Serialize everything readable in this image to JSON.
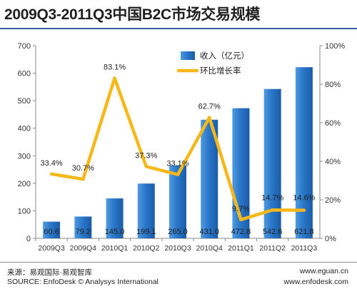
{
  "title": "2009Q3-2011Q3中国B2C市场交易规模",
  "footer": {
    "source_cn": "来源：易观国际·易观智库",
    "source_en": "SOURCE: EnfoDesk © Analysys International",
    "url1": "www.eguan.cn",
    "url2": "www.enfodesk.com"
  },
  "chart_data": {
    "type": "bar",
    "categories": [
      "2009Q3",
      "2009Q4",
      "2010Q1",
      "2010Q2",
      "2010Q3",
      "2010Q4",
      "2011Q1",
      "2011Q2",
      "2011Q3"
    ],
    "series": [
      {
        "name": "收入（亿元）",
        "type": "bar",
        "axis": "left",
        "values": [
          60.6,
          79.2,
          145.0,
          199.1,
          265.0,
          431.0,
          472.8,
          542.6,
          621.8
        ],
        "labels": [
          "60.6",
          "79.2",
          "145.0",
          "199.1",
          "265.0",
          "431.0",
          "472.8",
          "542.6",
          "621.8"
        ],
        "color": "#2a77c9"
      },
      {
        "name": "环比增长率",
        "type": "line",
        "axis": "right",
        "values": [
          33.4,
          30.7,
          83.1,
          37.3,
          33.1,
          62.7,
          9.7,
          14.7,
          14.6
        ],
        "labels": [
          "33.4%",
          "30.7%",
          "83.1%",
          "37.3%",
          "33.1%",
          "62.7%",
          "9.7%",
          "14.7%",
          "14.6%"
        ],
        "color": "#f7b718"
      }
    ],
    "y_left": {
      "min": 0,
      "max": 700,
      "ticks": [
        "0",
        "100",
        "200",
        "300",
        "400",
        "500",
        "600",
        "700"
      ]
    },
    "y_right": {
      "min": 0,
      "max": 100,
      "ticks": [
        "0%",
        "20%",
        "40%",
        "60%",
        "80%",
        "100%"
      ]
    },
    "legend_position": "top-center",
    "grid": false
  }
}
